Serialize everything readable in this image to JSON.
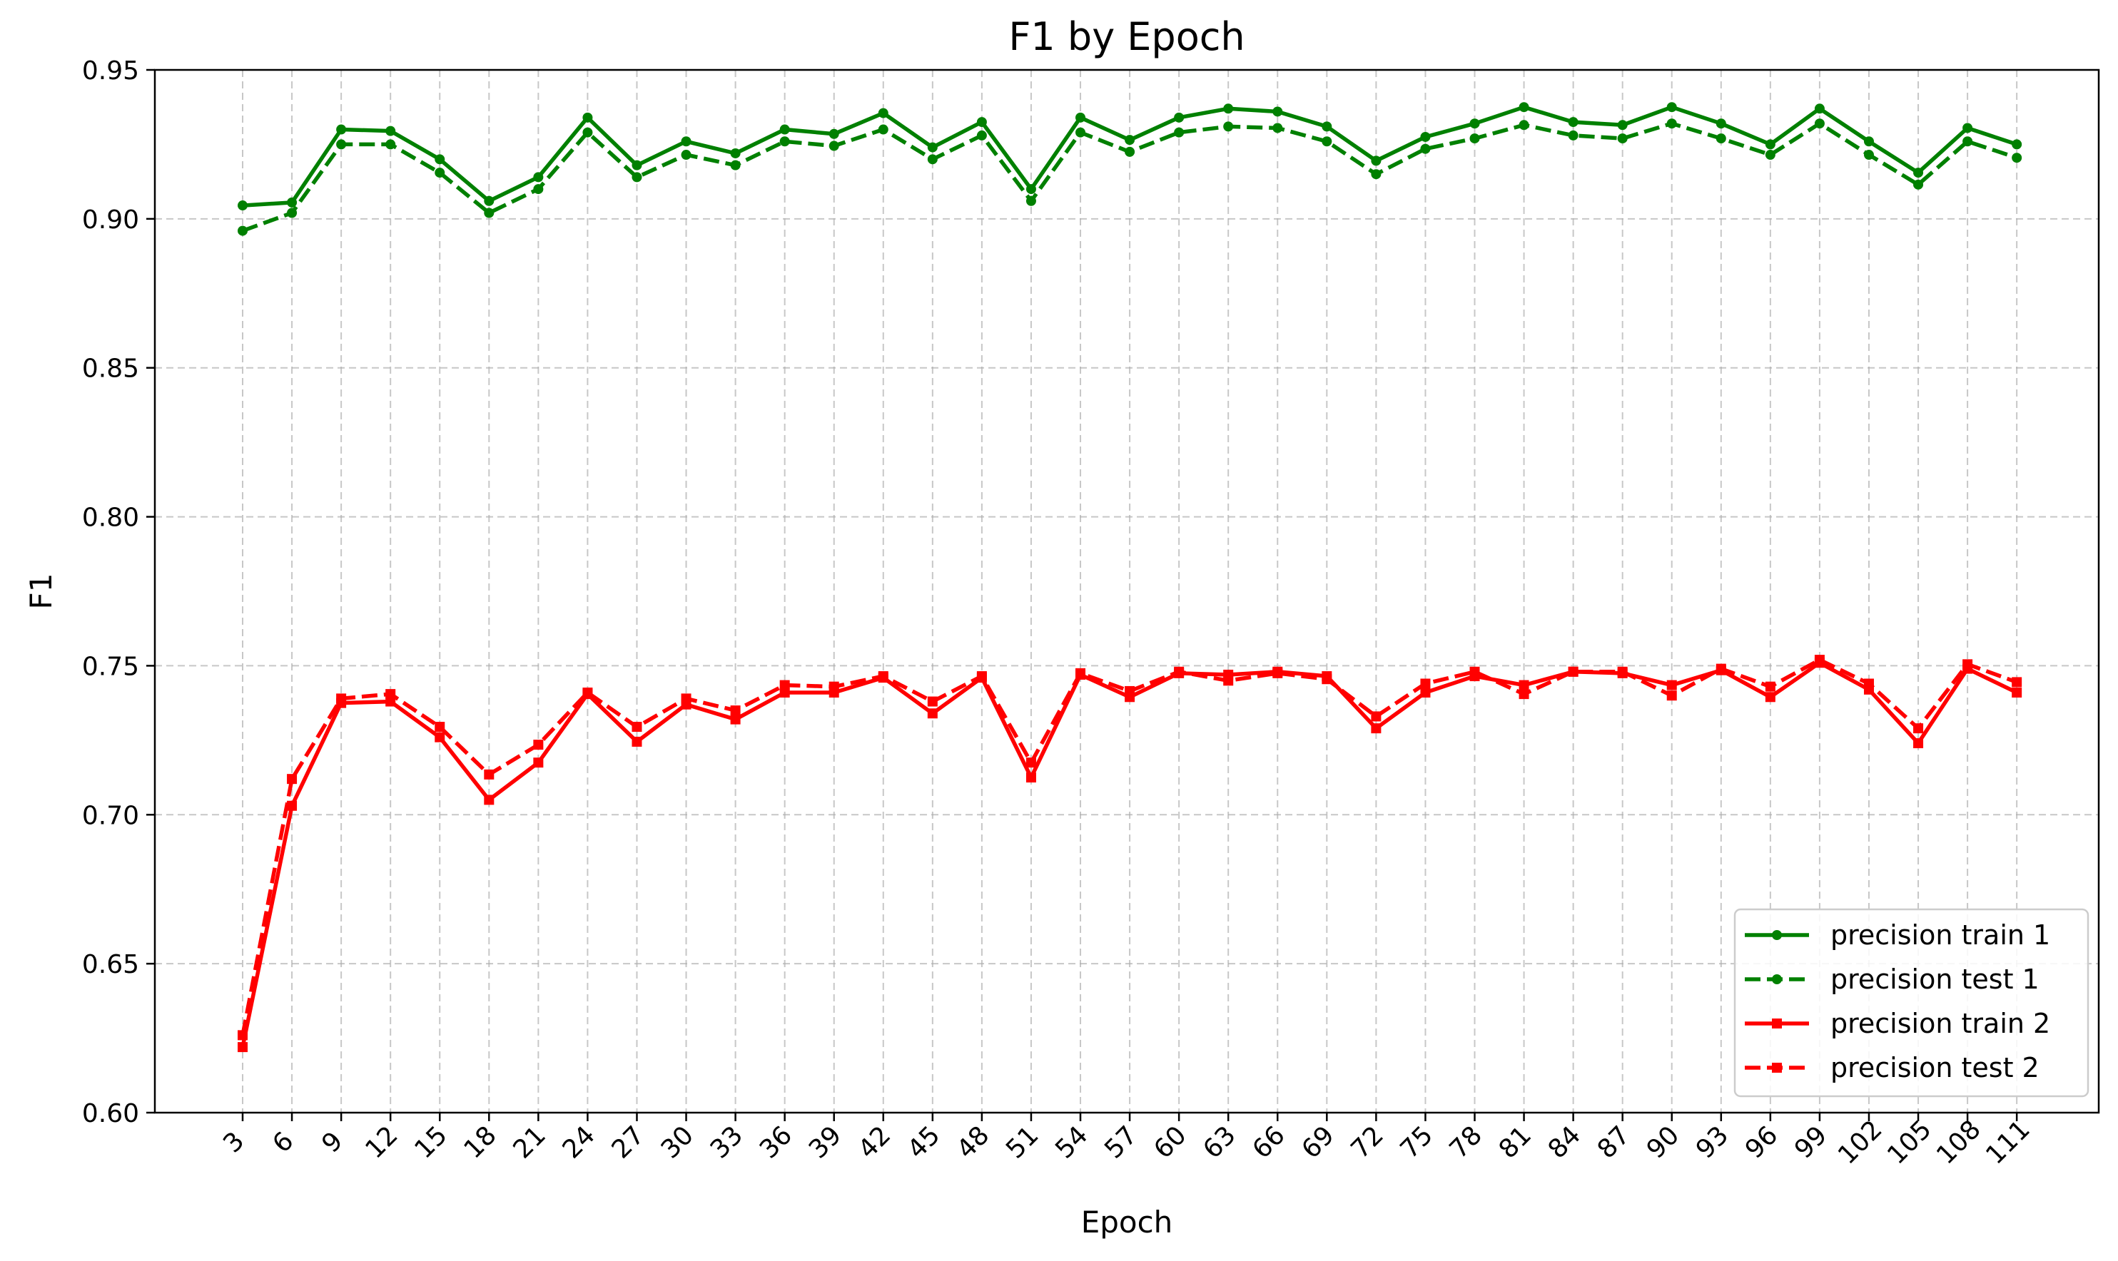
{
  "chart_data": {
    "type": "line",
    "title": "F1 by Epoch",
    "xlabel": "Epoch",
    "ylabel": "F1",
    "ylim": [
      0.6,
      0.95
    ],
    "yticks": [
      "0.60",
      "0.65",
      "0.70",
      "0.75",
      "0.80",
      "0.85",
      "0.90",
      "0.95"
    ],
    "grid": true,
    "legend_position": "lower-right",
    "x": [
      3,
      6,
      9,
      12,
      15,
      18,
      21,
      24,
      27,
      30,
      33,
      36,
      39,
      42,
      45,
      48,
      51,
      54,
      57,
      60,
      63,
      66,
      69,
      72,
      75,
      78,
      81,
      84,
      87,
      90,
      93,
      96,
      99,
      102,
      105,
      108,
      111
    ],
    "series": [
      {
        "name": "precision train 1",
        "color": "#008000",
        "style": "solid",
        "marker": "circle",
        "values": [
          0.9045,
          0.9055,
          0.93,
          0.9295,
          0.92,
          0.906,
          0.914,
          0.934,
          0.918,
          0.926,
          0.922,
          0.93,
          0.9285,
          0.9355,
          0.924,
          0.9325,
          0.91,
          0.934,
          0.9265,
          0.934,
          0.937,
          0.936,
          0.931,
          0.9195,
          0.9275,
          0.932,
          0.9375,
          0.9325,
          0.9315,
          0.9375,
          0.932,
          0.925,
          0.937,
          0.926,
          0.9155,
          0.9305,
          0.925
        ]
      },
      {
        "name": "precision test 1",
        "color": "#008000",
        "style": "dashed",
        "marker": "circle",
        "values": [
          0.896,
          0.902,
          0.925,
          0.925,
          0.9155,
          0.902,
          0.91,
          0.929,
          0.914,
          0.9215,
          0.918,
          0.926,
          0.9245,
          0.93,
          0.92,
          0.928,
          0.906,
          0.929,
          0.9225,
          0.929,
          0.931,
          0.9305,
          0.926,
          0.915,
          0.9235,
          0.927,
          0.9315,
          0.928,
          0.927,
          0.932,
          0.927,
          0.9215,
          0.932,
          0.9215,
          0.9115,
          0.926,
          0.9205
        ]
      },
      {
        "name": "precision train 2",
        "color": "#ff0000",
        "style": "solid",
        "marker": "square",
        "values": [
          0.622,
          0.703,
          0.7375,
          0.738,
          0.726,
          0.705,
          0.7175,
          0.7405,
          0.7245,
          0.737,
          0.732,
          0.741,
          0.741,
          0.746,
          0.734,
          0.746,
          0.7125,
          0.747,
          0.7395,
          0.7475,
          0.747,
          0.748,
          0.7465,
          0.729,
          0.741,
          0.7465,
          0.7435,
          0.748,
          0.7475,
          0.7435,
          0.7485,
          0.7395,
          0.751,
          0.742,
          0.724,
          0.749,
          0.741
        ]
      },
      {
        "name": "precision test 2",
        "color": "#ff0000",
        "style": "dashed",
        "marker": "square",
        "values": [
          0.626,
          0.712,
          0.739,
          0.7405,
          0.7295,
          0.7135,
          0.7235,
          0.741,
          0.7295,
          0.739,
          0.735,
          0.7435,
          0.743,
          0.7465,
          0.738,
          0.7465,
          0.7175,
          0.7475,
          0.7415,
          0.748,
          0.745,
          0.7475,
          0.7455,
          0.733,
          0.744,
          0.748,
          0.7405,
          0.748,
          0.748,
          0.74,
          0.749,
          0.743,
          0.752,
          0.744,
          0.729,
          0.7505,
          0.7445
        ]
      }
    ]
  }
}
